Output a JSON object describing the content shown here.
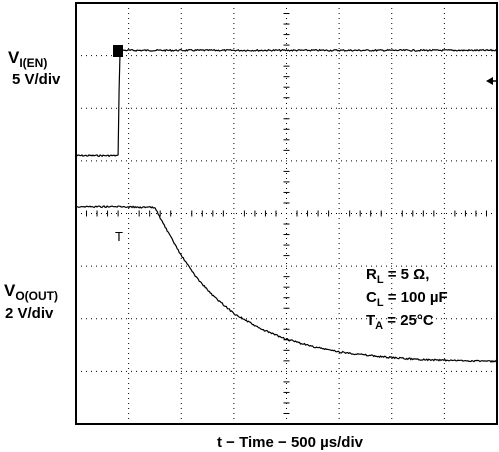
{
  "chart_data": {
    "type": "line",
    "xlabel": "t − Time − 500 µs/div",
    "channels": [
      {
        "name_main": "V",
        "name_sub": "I(EN)",
        "scale": "5 V/div",
        "trigger_marker": "T",
        "x_div": [
          0,
          0.8,
          0.83,
          8.0
        ],
        "y_div": [
          -1.0,
          -1.0,
          1.0,
          1.0
        ]
      },
      {
        "name_main": "V",
        "name_sub": "O(OUT)",
        "scale": "2 V/div",
        "trigger_marker": "T",
        "x_div": [
          0,
          0.9,
          1.5,
          1.7,
          2.0,
          2.3,
          2.6,
          3.0,
          3.5,
          4.0,
          4.5,
          5.0,
          5.5,
          6.0,
          6.5,
          7.0,
          7.5,
          8.0
        ],
        "y_div": [
          3.0,
          3.0,
          2.98,
          2.6,
          2.07,
          1.64,
          1.31,
          0.97,
          0.68,
          0.48,
          0.34,
          0.24,
          0.18,
          0.13,
          0.1,
          0.08,
          0.07,
          0.06
        ]
      }
    ],
    "conditions": [
      {
        "main": "R",
        "sub": "L",
        "value": " = 5 Ω,"
      },
      {
        "main": "C",
        "sub": "L",
        "value": " = 100 µF"
      },
      {
        "main": "T",
        "sub": "A",
        "value": " = 25°C"
      }
    ],
    "grid": true,
    "xdivisions": 8,
    "ydivisions": 8
  }
}
